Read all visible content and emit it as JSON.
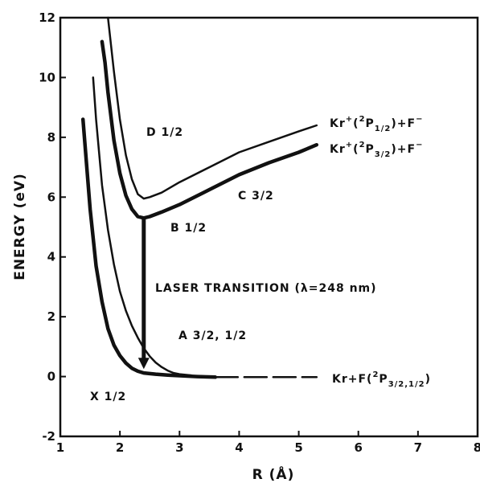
{
  "chart_data": {
    "type": "line",
    "title": "",
    "xlabel": "R (Å)",
    "ylabel": "ENERGY (eV)",
    "xlim": [
      1,
      8
    ],
    "ylim": [
      -2,
      12
    ],
    "x_ticks": [
      "1",
      "2",
      "3",
      "4",
      "5",
      "6",
      "7",
      "8"
    ],
    "y_ticks": [
      "-2",
      "0",
      "2",
      "4",
      "6",
      "8",
      "10",
      "12"
    ],
    "grid": false,
    "legend": "none",
    "series": [
      {
        "key": "ground",
        "stroke": "thick",
        "points": [
          [
            1.38,
            8.6
          ],
          [
            1.5,
            5.6
          ],
          [
            1.6,
            3.7
          ],
          [
            1.7,
            2.5
          ],
          [
            1.8,
            1.6
          ],
          [
            1.9,
            1.05
          ],
          [
            2.0,
            0.7
          ],
          [
            2.1,
            0.45
          ],
          [
            2.2,
            0.28
          ],
          [
            2.3,
            0.18
          ],
          [
            2.4,
            0.12
          ],
          [
            2.6,
            0.08
          ],
          [
            2.8,
            0.05
          ],
          [
            3.0,
            0.03
          ],
          [
            3.3,
            0.0
          ],
          [
            3.6,
            -0.02
          ]
        ]
      },
      {
        "key": "ground_dashed",
        "stroke": "dashed",
        "points": [
          [
            3.6,
            -0.02
          ],
          [
            4.2,
            -0.02
          ],
          [
            5.3,
            -0.02
          ]
        ]
      },
      {
        "key": "A",
        "stroke": "thin",
        "points": [
          [
            1.55,
            10.0
          ],
          [
            1.6,
            8.6
          ],
          [
            1.7,
            6.4
          ],
          [
            1.8,
            4.9
          ],
          [
            1.9,
            3.75
          ],
          [
            2.0,
            2.85
          ],
          [
            2.1,
            2.2
          ],
          [
            2.2,
            1.7
          ],
          [
            2.3,
            1.3
          ],
          [
            2.4,
            0.95
          ],
          [
            2.5,
            0.68
          ],
          [
            2.6,
            0.47
          ],
          [
            2.7,
            0.32
          ],
          [
            2.8,
            0.2
          ],
          [
            2.9,
            0.12
          ],
          [
            3.0,
            0.08
          ],
          [
            3.2,
            0.04
          ]
        ]
      },
      {
        "key": "B",
        "stroke": "thick",
        "points": [
          [
            1.7,
            11.2
          ],
          [
            1.75,
            10.5
          ],
          [
            1.8,
            9.5
          ],
          [
            1.9,
            7.9
          ],
          [
            2.0,
            6.8
          ],
          [
            2.1,
            6.05
          ],
          [
            2.2,
            5.6
          ],
          [
            2.3,
            5.35
          ],
          [
            2.4,
            5.3
          ],
          [
            2.5,
            5.35
          ],
          [
            2.7,
            5.5
          ],
          [
            3.0,
            5.75
          ],
          [
            3.5,
            6.25
          ],
          [
            4.0,
            6.75
          ],
          [
            4.5,
            7.15
          ],
          [
            5.0,
            7.5
          ],
          [
            5.3,
            7.75
          ]
        ]
      },
      {
        "key": "D",
        "stroke": "thin",
        "points": [
          [
            1.8,
            12.0
          ],
          [
            1.9,
            10.2
          ],
          [
            2.0,
            8.6
          ],
          [
            2.1,
            7.4
          ],
          [
            2.2,
            6.6
          ],
          [
            2.3,
            6.1
          ],
          [
            2.4,
            5.95
          ],
          [
            2.5,
            6.0
          ],
          [
            2.7,
            6.15
          ],
          [
            3.0,
            6.5
          ],
          [
            3.5,
            7.0
          ],
          [
            4.0,
            7.5
          ],
          [
            4.5,
            7.85
          ],
          [
            5.0,
            8.2
          ],
          [
            5.3,
            8.4
          ]
        ]
      }
    ],
    "transition": {
      "x": 2.4,
      "y_from": 5.3,
      "y_to": 0.25
    },
    "annotations": {
      "d12": "D 1/2",
      "c32": "C 3/2",
      "b12": "B 1/2",
      "laser": "LASER TRANSITION (λ=248 nm)",
      "a32": "A 3/2, 1/2",
      "x12": "X 1/2",
      "label_upper": {
        "lead": "Kr",
        "sup1": "+",
        "mid": "(",
        "sup2": "2",
        "p": "P",
        "sub": "1/2",
        "tail": ")+F",
        "sup3": "−"
      },
      "label_lower": {
        "lead": "Kr",
        "sup1": "+",
        "mid": "(",
        "sup2": "2",
        "p": "P",
        "sub": "3/2",
        "tail": ")+F",
        "sup3": "−"
      },
      "label_ground": {
        "lead": "Kr+F(",
        "sup2": "2",
        "p": "P",
        "sub": "3/2,1/2",
        "tail": ")"
      }
    }
  }
}
